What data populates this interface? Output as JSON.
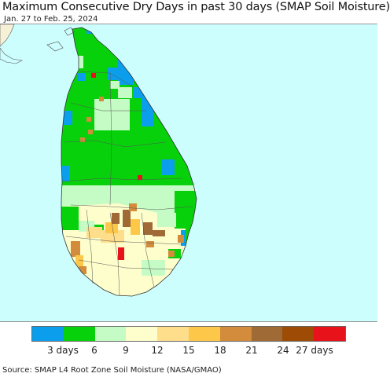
{
  "header": {
    "title": "Maximum Consecutive Dry Days in past 30 days (SMAP Soil Moisture)",
    "subtitle": "Jan. 27 to Feb. 25, 2024"
  },
  "map": {
    "region": "Sri Lanka",
    "ocean_color": "#cdfefe",
    "land_bg_color": "#f6f0d6"
  },
  "legend": {
    "colors": [
      "#0b9eec",
      "#07d10b",
      "#c5fcc5",
      "#fefecc",
      "#fedd8b",
      "#fdc84a",
      "#d28c3c",
      "#a06a36",
      "#9d4b05",
      "#e8121b"
    ],
    "ticks": [
      {
        "label": "3 days"
      },
      {
        "label": "6"
      },
      {
        "label": "9"
      },
      {
        "label": "12"
      },
      {
        "label": "15"
      },
      {
        "label": "18"
      },
      {
        "label": "21"
      },
      {
        "label": "24"
      },
      {
        "label": "27 days"
      }
    ]
  },
  "footer": {
    "source": "Source: SMAP L4 Root Zone Soil Moisture (NASA/GMAO)"
  }
}
